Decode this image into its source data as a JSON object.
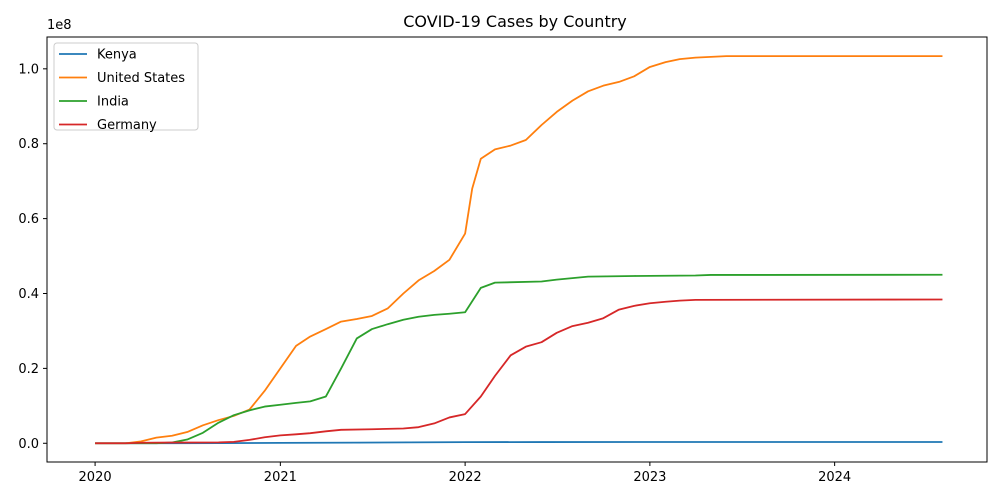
{
  "chart_data": {
    "type": "line",
    "title": "COVID-19 Cases by Country",
    "xlabel": "",
    "ylabel": "",
    "y_offset_label": "1e8",
    "y_scale_factor": 100000000,
    "xlim": [
      "2019-09-28",
      "2024-10-28"
    ],
    "ylim": [
      -5000000,
      108500000
    ],
    "x_ticks": [
      {
        "date": "2020-01-01",
        "label": "2020"
      },
      {
        "date": "2021-01-01",
        "label": "2021"
      },
      {
        "date": "2022-01-01",
        "label": "2022"
      },
      {
        "date": "2023-01-01",
        "label": "2023"
      },
      {
        "date": "2024-01-01",
        "label": "2024"
      }
    ],
    "y_ticks": [
      {
        "value": 0,
        "label": "0.0"
      },
      {
        "value": 20000000,
        "label": "0.2"
      },
      {
        "value": 40000000,
        "label": "0.4"
      },
      {
        "value": 60000000,
        "label": "0.6"
      },
      {
        "value": 80000000,
        "label": "0.8"
      },
      {
        "value": 100000000,
        "label": "1.0"
      }
    ],
    "legend_position": "top-left",
    "grid": false,
    "series": [
      {
        "name": "Kenya",
        "color": "#1f77b4",
        "points": [
          [
            "2020-01-01",
            0
          ],
          [
            "2020-03-15",
            0
          ],
          [
            "2020-06-01",
            3000
          ],
          [
            "2020-09-01",
            35000
          ],
          [
            "2021-01-01",
            100000
          ],
          [
            "2021-06-01",
            180000
          ],
          [
            "2022-01-01",
            300000
          ],
          [
            "2022-06-01",
            330000
          ],
          [
            "2023-01-01",
            342000
          ],
          [
            "2024-08-01",
            344000
          ]
        ]
      },
      {
        "name": "United States",
        "color": "#ff7f0e",
        "points": [
          [
            "2020-01-01",
            0
          ],
          [
            "2020-03-01",
            0
          ],
          [
            "2020-04-01",
            500000
          ],
          [
            "2020-05-01",
            1500000
          ],
          [
            "2020-06-01",
            2000000
          ],
          [
            "2020-07-01",
            3000000
          ],
          [
            "2020-08-01",
            4800000
          ],
          [
            "2020-09-01",
            6200000
          ],
          [
            "2020-10-01",
            7300000
          ],
          [
            "2020-11-01",
            9000000
          ],
          [
            "2020-12-01",
            14000000
          ],
          [
            "2021-01-01",
            20000000
          ],
          [
            "2021-02-01",
            26000000
          ],
          [
            "2021-03-01",
            28500000
          ],
          [
            "2021-04-01",
            30500000
          ],
          [
            "2021-05-01",
            32500000
          ],
          [
            "2021-06-01",
            33200000
          ],
          [
            "2021-07-01",
            34000000
          ],
          [
            "2021-08-01",
            36000000
          ],
          [
            "2021-09-01",
            40000000
          ],
          [
            "2021-10-01",
            43500000
          ],
          [
            "2021-11-01",
            46000000
          ],
          [
            "2021-12-01",
            49000000
          ],
          [
            "2022-01-01",
            56000000
          ],
          [
            "2022-01-15",
            68000000
          ],
          [
            "2022-02-01",
            76000000
          ],
          [
            "2022-03-01",
            78500000
          ],
          [
            "2022-04-01",
            79500000
          ],
          [
            "2022-05-01",
            81000000
          ],
          [
            "2022-06-01",
            85000000
          ],
          [
            "2022-07-01",
            88500000
          ],
          [
            "2022-08-01",
            91500000
          ],
          [
            "2022-09-01",
            94000000
          ],
          [
            "2022-10-01",
            95500000
          ],
          [
            "2022-11-01",
            96500000
          ],
          [
            "2022-12-01",
            98000000
          ],
          [
            "2023-01-01",
            100500000
          ],
          [
            "2023-02-01",
            101800000
          ],
          [
            "2023-03-01",
            102600000
          ],
          [
            "2023-04-01",
            103000000
          ],
          [
            "2023-06-01",
            103400000
          ],
          [
            "2024-08-01",
            103400000
          ]
        ]
      },
      {
        "name": "India",
        "color": "#2ca02c",
        "points": [
          [
            "2020-01-01",
            0
          ],
          [
            "2020-05-01",
            0
          ],
          [
            "2020-06-01",
            200000
          ],
          [
            "2020-07-01",
            1000000
          ],
          [
            "2020-08-01",
            2800000
          ],
          [
            "2020-09-01",
            5500000
          ],
          [
            "2020-10-01",
            7500000
          ],
          [
            "2020-11-01",
            8800000
          ],
          [
            "2020-12-01",
            9800000
          ],
          [
            "2021-01-01",
            10300000
          ],
          [
            "2021-02-01",
            10800000
          ],
          [
            "2021-03-01",
            11200000
          ],
          [
            "2021-04-01",
            12500000
          ],
          [
            "2021-05-01",
            20000000
          ],
          [
            "2021-06-01",
            28000000
          ],
          [
            "2021-07-01",
            30500000
          ],
          [
            "2021-08-01",
            31800000
          ],
          [
            "2021-09-01",
            33000000
          ],
          [
            "2021-10-01",
            33800000
          ],
          [
            "2021-11-01",
            34300000
          ],
          [
            "2021-12-01",
            34600000
          ],
          [
            "2022-01-01",
            35000000
          ],
          [
            "2022-02-01",
            41500000
          ],
          [
            "2022-03-01",
            42900000
          ],
          [
            "2022-06-01",
            43200000
          ],
          [
            "2022-07-01",
            43700000
          ],
          [
            "2022-09-01",
            44500000
          ],
          [
            "2022-12-01",
            44680000
          ],
          [
            "2023-04-01",
            44800000
          ],
          [
            "2023-05-01",
            44950000
          ],
          [
            "2024-08-01",
            45000000
          ]
        ]
      },
      {
        "name": "Germany",
        "color": "#d62728",
        "points": [
          [
            "2020-01-01",
            0
          ],
          [
            "2020-03-01",
            0
          ],
          [
            "2020-04-01",
            150000
          ],
          [
            "2020-06-01",
            190000
          ],
          [
            "2020-09-01",
            250000
          ],
          [
            "2020-10-01",
            370000
          ],
          [
            "2020-11-01",
            900000
          ],
          [
            "2020-12-01",
            1600000
          ],
          [
            "2021-01-01",
            2100000
          ],
          [
            "2021-02-01",
            2400000
          ],
          [
            "2021-03-01",
            2700000
          ],
          [
            "2021-04-01",
            3200000
          ],
          [
            "2021-05-01",
            3600000
          ],
          [
            "2021-07-01",
            3750000
          ],
          [
            "2021-09-01",
            3950000
          ],
          [
            "2021-10-01",
            4300000
          ],
          [
            "2021-11-01",
            5300000
          ],
          [
            "2021-12-01",
            6900000
          ],
          [
            "2022-01-01",
            7800000
          ],
          [
            "2022-02-01",
            12500000
          ],
          [
            "2022-03-01",
            18000000
          ],
          [
            "2022-04-01",
            23500000
          ],
          [
            "2022-05-01",
            25800000
          ],
          [
            "2022-06-01",
            27000000
          ],
          [
            "2022-07-01",
            29500000
          ],
          [
            "2022-08-01",
            31300000
          ],
          [
            "2022-09-01",
            32200000
          ],
          [
            "2022-10-01",
            33400000
          ],
          [
            "2022-11-01",
            35700000
          ],
          [
            "2022-12-01",
            36700000
          ],
          [
            "2023-01-01",
            37400000
          ],
          [
            "2023-02-01",
            37800000
          ],
          [
            "2023-03-01",
            38100000
          ],
          [
            "2023-04-01",
            38300000
          ],
          [
            "2024-08-01",
            38400000
          ]
        ]
      }
    ]
  }
}
